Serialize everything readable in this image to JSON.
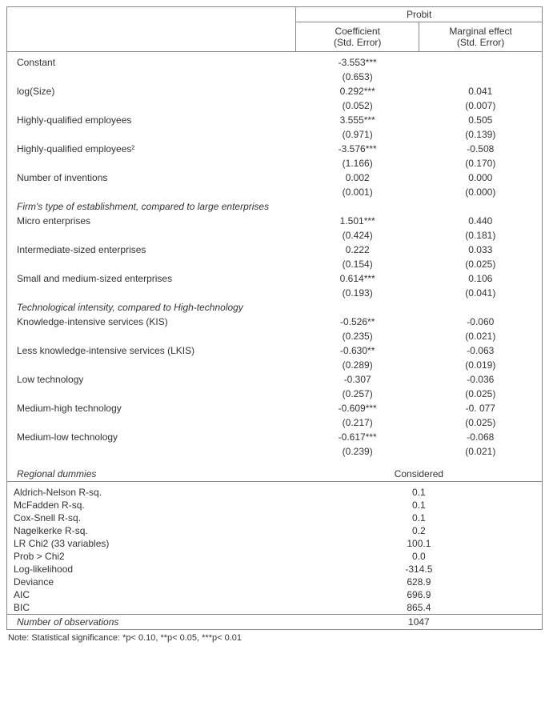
{
  "header": {
    "probit": "Probit",
    "coef": "Coefficient",
    "coef_sub": "(Std. Error)",
    "me": "Marginal effect",
    "me_sub": "(Std. Error)"
  },
  "rows": [
    {
      "label": "Constant",
      "coef": "-3.553***",
      "coef_se": "(0.653)",
      "me": "",
      "me_se": ""
    },
    {
      "label": "log(Size)",
      "coef": "0.292***",
      "coef_se": "(0.052)",
      "me": "0.041",
      "me_se": "(0.007)"
    },
    {
      "label": "Highly-qualified employees",
      "coef": "3.555***",
      "coef_se": "(0.971)",
      "me": "0.505",
      "me_se": "(0.139)"
    },
    {
      "label": "Highly-qualified employees²",
      "coef": "-3.576***",
      "coef_se": "(1.166)",
      "me": "-0.508",
      "me_se": "(0.170)"
    },
    {
      "label": "Number of inventions",
      "coef": "0.002",
      "coef_se": "(0.001)",
      "me": "0.000",
      "me_se": "(0.000)"
    }
  ],
  "section1": {
    "title": "Firm's type of establishment, compared to large enterprises",
    "rows": [
      {
        "label": "Micro enterprises",
        "coef": "1.501***",
        "coef_se": "(0.424)",
        "me": "0.440",
        "me_se": "(0.181)"
      },
      {
        "label": "Intermediate-sized enterprises",
        "coef": "0.222",
        "coef_se": "(0.154)",
        "me": "0.033",
        "me_se": "(0.025)"
      },
      {
        "label": "Small and medium-sized enterprises",
        "coef": "0.614***",
        "coef_se": "(0.193)",
        "me": "0.106",
        "me_se": "(0.041)"
      }
    ]
  },
  "section2": {
    "title": "Technological intensity, compared to High-technology",
    "rows": [
      {
        "label": "Knowledge-intensive services (KIS)",
        "coef": "-0.526**",
        "coef_se": "(0.235)",
        "me": "-0.060",
        "me_se": "(0.021)"
      },
      {
        "label": "Less knowledge-intensive services (LKIS)",
        "coef": "-0.630**",
        "coef_se": "(0.289)",
        "me": "-0.063",
        "me_se": "(0.019)"
      },
      {
        "label": "Low technology",
        "coef": "-0.307",
        "coef_se": "(0.257)",
        "me": "-0.036",
        "me_se": "(0.025)"
      },
      {
        "label": "Medium-high technology",
        "coef": "-0.609***",
        "coef_se": "(0.217)",
        "me": "-0. 077",
        "me_se": "(0.025)"
      },
      {
        "label": "Medium-low technology",
        "coef": "-0.617***",
        "coef_se": "(0.239)",
        "me": "-0.068",
        "me_se": "(0.021)"
      }
    ]
  },
  "regional": {
    "label": "Regional dummies",
    "value": "Considered"
  },
  "stats": [
    {
      "label": "Aldrich-Nelson R-sq.",
      "value": "0.1"
    },
    {
      "label": "McFadden R-sq.",
      "value": "0.1"
    },
    {
      "label": "Cox-Snell R-sq.",
      "value": "0.1"
    },
    {
      "label": "Nagelkerke R-sq.",
      "value": "0.2"
    },
    {
      "label": "LR Chi2 (33 variables)",
      "value": "100.1"
    },
    {
      "label": "Prob > Chi2",
      "value": "0.0"
    },
    {
      "label": "Log-likelihood",
      "value": "-314.5"
    },
    {
      "label": "Deviance",
      "value": "628.9"
    },
    {
      "label": "AIC",
      "value": "696.9"
    },
    {
      "label": "BIC",
      "value": "865.4"
    }
  ],
  "nobs": {
    "label": "Number of observations",
    "value": "1047"
  },
  "note": "Note: Statistical significance: *p< 0.10, **p< 0.05, ***p< 0.01"
}
